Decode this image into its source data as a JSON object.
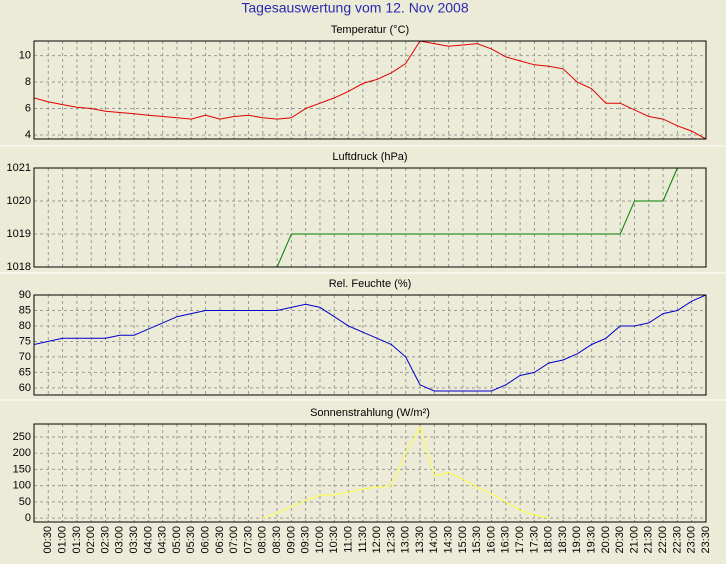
{
  "title": "Tagesauswertung vom 12. Nov 2008",
  "chart_data": [
    {
      "type": "line",
      "title": "Temperatur (°C)",
      "color": "#e00000",
      "ylim": [
        3.7,
        11.1
      ],
      "yticks": [
        4,
        6,
        8,
        10
      ],
      "grid": true,
      "values": [
        6.8,
        6.5,
        6.3,
        6.1,
        6.0,
        5.8,
        5.7,
        5.6,
        5.5,
        5.4,
        5.3,
        5.2,
        5.5,
        5.2,
        5.4,
        5.5,
        5.3,
        5.2,
        5.3,
        6.0,
        6.4,
        6.8,
        7.3,
        7.9,
        8.2,
        8.7,
        9.4,
        11.1,
        10.9,
        10.7,
        10.8,
        10.9,
        10.5,
        9.9,
        9.6,
        9.3,
        9.2,
        9.0,
        8.0,
        7.5,
        6.4,
        6.4,
        5.9,
        5.4,
        5.2,
        4.7,
        4.3,
        3.7
      ]
    },
    {
      "type": "line",
      "title": "Luftdruck (hPa)",
      "color": "#008000",
      "ylim": [
        1018,
        1021
      ],
      "yticks": [
        1018,
        1019,
        1020,
        1021
      ],
      "grid": true,
      "values": [
        null,
        null,
        null,
        null,
        null,
        null,
        null,
        null,
        null,
        null,
        null,
        null,
        null,
        null,
        null,
        null,
        null,
        1018,
        1019,
        1019,
        1019,
        1019,
        1019,
        1019,
        1019,
        1019,
        1019,
        1019,
        1019,
        1019,
        1019,
        1019,
        1019,
        1019,
        1019,
        1019,
        1019,
        1019,
        1019,
        1019,
        1019,
        1019,
        1020,
        1020,
        1020,
        1021,
        null,
        null
      ]
    },
    {
      "type": "line",
      "title": "Rel. Feuchte (%)",
      "color": "#0000cc",
      "ylim": [
        57.7,
        90
      ],
      "yticks": [
        60,
        65,
        70,
        75,
        80,
        85,
        90
      ],
      "grid": true,
      "values": [
        74,
        75,
        76,
        76,
        76,
        76,
        77,
        77,
        79,
        81,
        83,
        84,
        85,
        85,
        85,
        85,
        85,
        85,
        86,
        87,
        86,
        83,
        80,
        78,
        76,
        74,
        70,
        61,
        59,
        59,
        59,
        59,
        59,
        61,
        64,
        65,
        68,
        69,
        71,
        74,
        76,
        80,
        80,
        81,
        84,
        85,
        88,
        90
      ]
    },
    {
      "type": "line",
      "title": "Sonnenstrahlung (W/m²)",
      "color": "#ffff40",
      "ylim": [
        -12,
        290
      ],
      "yticks": [
        0,
        50,
        100,
        150,
        200,
        250
      ],
      "grid": true,
      "categories": [
        null,
        "00:30",
        "01:00",
        "01:30",
        "02:00",
        "02:30",
        "03:00",
        "03:30",
        "04:00",
        "04:30",
        "05:00",
        "05:30",
        "06:00",
        "06:30",
        "07:00",
        "07:30",
        "08:00",
        "08:30",
        "09:00",
        "09:30",
        "10:00",
        "10:30",
        "11:00",
        "11:30",
        "12:00",
        "12:30",
        "13:00",
        "13:30",
        "14:00",
        "14:30",
        "15:00",
        "15:30",
        "16:00",
        "16:30",
        "17:00",
        "17:30",
        "18:00",
        "18:30",
        "19:00",
        "19:30",
        "20:00",
        "20:30",
        "21:00",
        "21:30",
        "22:00",
        "22:30",
        "23:00",
        "23:30"
      ],
      "values": [
        null,
        null,
        null,
        null,
        null,
        null,
        null,
        null,
        null,
        null,
        null,
        null,
        null,
        null,
        null,
        null,
        0,
        15,
        35,
        55,
        70,
        72,
        80,
        90,
        95,
        100,
        200,
        280,
        130,
        140,
        120,
        95,
        75,
        50,
        25,
        10,
        0,
        null,
        null,
        null,
        null,
        null,
        null,
        null,
        null,
        null,
        null,
        null
      ]
    }
  ]
}
